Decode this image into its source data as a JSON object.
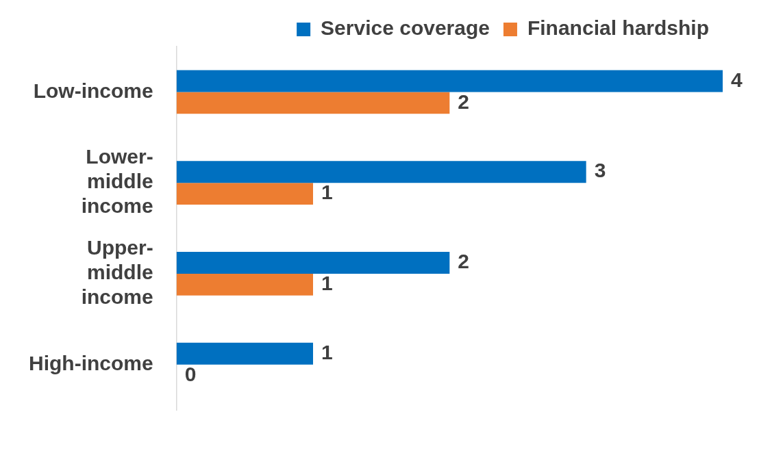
{
  "chart_data": {
    "type": "bar",
    "orientation": "horizontal",
    "categories": [
      "Low-income",
      "Lower-middle income",
      "Upper-middle income",
      "High-income"
    ],
    "series": [
      {
        "name": "Service coverage",
        "color": "#0070c0",
        "values": [
          4,
          3,
          2,
          1
        ]
      },
      {
        "name": "Financial hardship",
        "color": "#ed7d31",
        "values": [
          2,
          1,
          1,
          0
        ]
      }
    ],
    "data_labels": true,
    "legend": "top"
  }
}
